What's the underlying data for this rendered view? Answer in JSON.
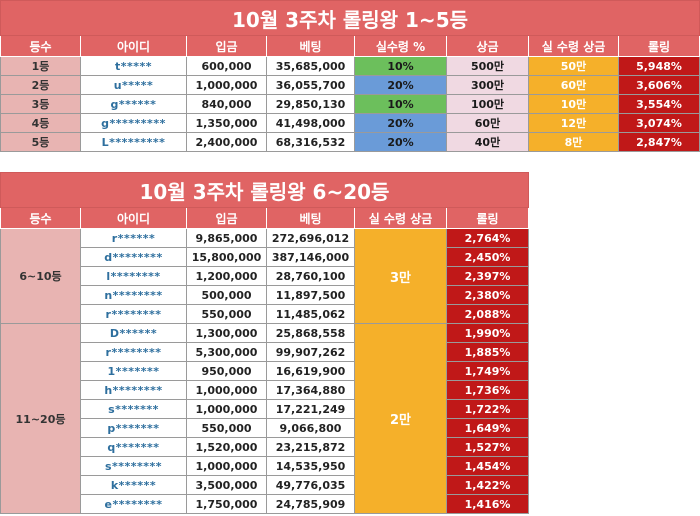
{
  "top5": {
    "title": "10월 3주차 롤링왕 1~5등",
    "headers": [
      "등수",
      "아이디",
      "입금",
      "베팅",
      "실수령 %",
      "상금",
      "실 수령 상금",
      "롤링"
    ],
    "rows": [
      {
        "rank": "1등",
        "id": "t*****",
        "deposit": "600,000",
        "bet": "35,685,000",
        "pct": "10%",
        "prize": "500만",
        "real": "50만",
        "rolling": "5,948%"
      },
      {
        "rank": "2등",
        "id": "u*****",
        "deposit": "1,000,000",
        "bet": "36,055,700",
        "pct": "20%",
        "prize": "300만",
        "real": "60만",
        "rolling": "3,606%"
      },
      {
        "rank": "3등",
        "id": "g******",
        "deposit": "840,000",
        "bet": "29,850,130",
        "pct": "10%",
        "prize": "100만",
        "real": "10만",
        "rolling": "3,554%"
      },
      {
        "rank": "4등",
        "id": "g*********",
        "deposit": "1,350,000",
        "bet": "41,498,000",
        "pct": "20%",
        "prize": "60만",
        "real": "12만",
        "rolling": "3,074%"
      },
      {
        "rank": "5등",
        "id": "L*********",
        "deposit": "2,400,000",
        "bet": "68,316,532",
        "pct": "20%",
        "prize": "40만",
        "real": "8만",
        "rolling": "2,847%"
      }
    ]
  },
  "rest": {
    "title": "10월 3주차 롤링왕 6~20등",
    "headers": [
      "등수",
      "아이디",
      "입금",
      "베팅",
      "실 수령 상금",
      "롤링"
    ],
    "group1": {
      "rank": "6~10등",
      "prize": "3만",
      "rows": [
        {
          "id": "r******",
          "deposit": "9,865,000",
          "bet": "272,696,012",
          "rolling": "2,764%"
        },
        {
          "id": "d********",
          "deposit": "15,800,000",
          "bet": "387,146,000",
          "rolling": "2,450%"
        },
        {
          "id": "l********",
          "deposit": "1,200,000",
          "bet": "28,760,100",
          "rolling": "2,397%"
        },
        {
          "id": "n********",
          "deposit": "500,000",
          "bet": "11,897,500",
          "rolling": "2,380%"
        },
        {
          "id": "r********",
          "deposit": "550,000",
          "bet": "11,485,062",
          "rolling": "2,088%"
        }
      ]
    },
    "group2": {
      "rank": "11~20등",
      "prize": "2만",
      "rows": [
        {
          "id": "D******",
          "deposit": "1,300,000",
          "bet": "25,868,558",
          "rolling": "1,990%"
        },
        {
          "id": "r********",
          "deposit": "5,300,000",
          "bet": "99,907,262",
          "rolling": "1,885%"
        },
        {
          "id": "1*******",
          "deposit": "950,000",
          "bet": "16,619,900",
          "rolling": "1,749%"
        },
        {
          "id": "h********",
          "deposit": "1,000,000",
          "bet": "17,364,880",
          "rolling": "1,736%"
        },
        {
          "id": "s*******",
          "deposit": "1,000,000",
          "bet": "17,221,249",
          "rolling": "1,722%"
        },
        {
          "id": "p*******",
          "deposit": "550,000",
          "bet": "9,066,800",
          "rolling": "1,649%"
        },
        {
          "id": "q*******",
          "deposit": "1,520,000",
          "bet": "23,215,872",
          "rolling": "1,527%"
        },
        {
          "id": "s********",
          "deposit": "1,000,000",
          "bet": "14,535,950",
          "rolling": "1,454%"
        },
        {
          "id": "k******",
          "deposit": "3,500,000",
          "bet": "49,776,035",
          "rolling": "1,422%"
        },
        {
          "id": "e********",
          "deposit": "1,750,000",
          "bet": "24,785,909",
          "rolling": "1,416%"
        }
      ]
    }
  },
  "colors": {
    "title_bg": "#e06464",
    "rank_bg": "#e8b4b2",
    "id_text": "#2e6f9e",
    "pct_green": "#6cbf5c",
    "pct_blue": "#6a9bd8",
    "prize_pink": "#f0d9e2",
    "real_orange": "#f5b02a",
    "rolling_red": "#c01818"
  }
}
